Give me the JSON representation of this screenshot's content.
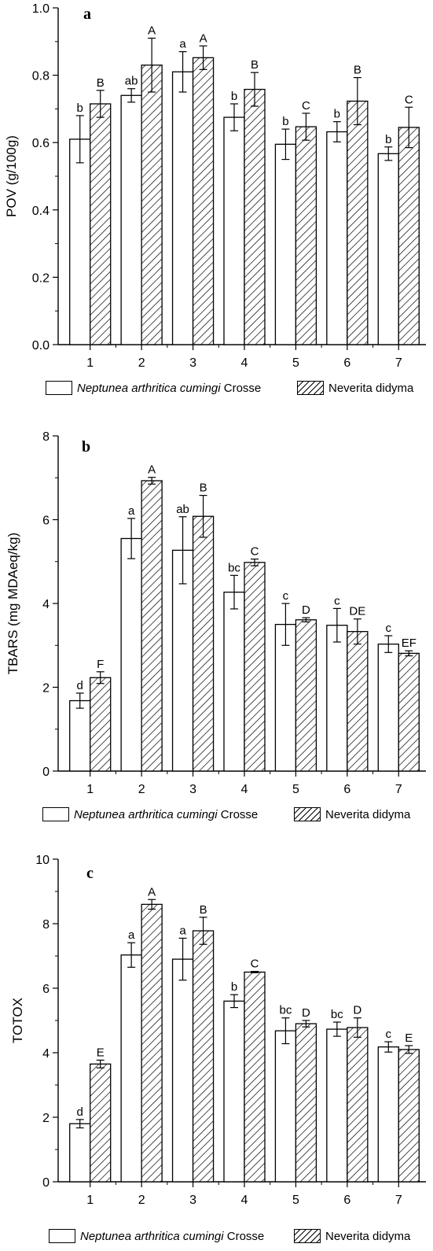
{
  "legend": {
    "series1_species": "Neptunea arthritica cumingi",
    "series1_suffix": " Crosse",
    "series2_species": "Neverita didyma"
  },
  "chart_data": [
    {
      "type": "bar",
      "panel": "a",
      "title": "",
      "xlabel": "",
      "ylabel": "POV (g/100g)",
      "categories": [
        "1",
        "2",
        "3",
        "4",
        "5",
        "6",
        "7"
      ],
      "ylim": [
        0,
        1.0
      ],
      "yticks": [
        "0.0",
        "0.2",
        "0.4",
        "0.6",
        "0.8",
        "1.0"
      ],
      "series": [
        {
          "name": "Neptunea arthritica cumingi Crosse",
          "fill": "open",
          "values": [
            0.61,
            0.74,
            0.81,
            0.675,
            0.595,
            0.632,
            0.567
          ],
          "errors": [
            0.07,
            0.02,
            0.06,
            0.04,
            0.045,
            0.03,
            0.02
          ],
          "letters": [
            "b",
            "ab",
            "a",
            "b",
            "b",
            "b",
            "b"
          ]
        },
        {
          "name": "Neverita didyma",
          "fill": "hatched",
          "values": [
            0.715,
            0.83,
            0.852,
            0.758,
            0.647,
            0.723,
            0.645
          ],
          "errors": [
            0.04,
            0.08,
            0.035,
            0.05,
            0.04,
            0.07,
            0.06
          ],
          "letters": [
            "B",
            "A",
            "A",
            "B",
            "C",
            "B",
            "C"
          ]
        }
      ]
    },
    {
      "type": "bar",
      "panel": "b",
      "title": "",
      "xlabel": "",
      "ylabel": "TBARS (mg MDAeq/kg)",
      "categories": [
        "1",
        "2",
        "3",
        "4",
        "5",
        "6",
        "7"
      ],
      "ylim": [
        0,
        8
      ],
      "yticks": [
        "0",
        "2",
        "4",
        "6",
        "8"
      ],
      "series": [
        {
          "name": "Neptunea arthritica cumingi Crosse",
          "fill": "open",
          "values": [
            1.68,
            5.55,
            5.27,
            4.27,
            3.5,
            3.48,
            3.03
          ],
          "errors": [
            0.18,
            0.48,
            0.8,
            0.4,
            0.5,
            0.4,
            0.2
          ],
          "letters": [
            "d",
            "a",
            "ab",
            "bc",
            "c",
            "c",
            "c"
          ]
        },
        {
          "name": "Neverita didyma",
          "fill": "hatched",
          "values": [
            2.23,
            6.93,
            6.08,
            4.98,
            3.61,
            3.33,
            2.81
          ],
          "errors": [
            0.14,
            0.08,
            0.5,
            0.08,
            0.05,
            0.3,
            0.06
          ],
          "letters": [
            "F",
            "A",
            "B",
            "C",
            "D",
            "DE",
            "EF"
          ]
        }
      ]
    },
    {
      "type": "bar",
      "panel": "c",
      "title": "",
      "xlabel": "",
      "ylabel": "TOTOX",
      "categories": [
        "1",
        "2",
        "3",
        "4",
        "5",
        "6",
        "7"
      ],
      "ylim": [
        0,
        10
      ],
      "yticks": [
        "0",
        "2",
        "4",
        "6",
        "8",
        "10"
      ],
      "series": [
        {
          "name": "Neptunea arthritica cumingi Crosse",
          "fill": "open",
          "values": [
            1.8,
            7.03,
            6.9,
            5.6,
            4.68,
            4.73,
            4.18
          ],
          "errors": [
            0.13,
            0.38,
            0.65,
            0.2,
            0.4,
            0.22,
            0.16
          ],
          "letters": [
            "d",
            "a",
            "a",
            "b",
            "bc",
            "bc",
            "c"
          ]
        },
        {
          "name": "Neverita didyma",
          "fill": "hatched",
          "values": [
            3.65,
            8.6,
            7.78,
            6.5,
            4.9,
            4.78,
            4.1
          ],
          "errors": [
            0.12,
            0.15,
            0.42,
            0.02,
            0.1,
            0.3,
            0.12
          ],
          "letters": [
            "E",
            "A",
            "B",
            "C",
            "D",
            "D",
            "E"
          ]
        }
      ]
    }
  ]
}
